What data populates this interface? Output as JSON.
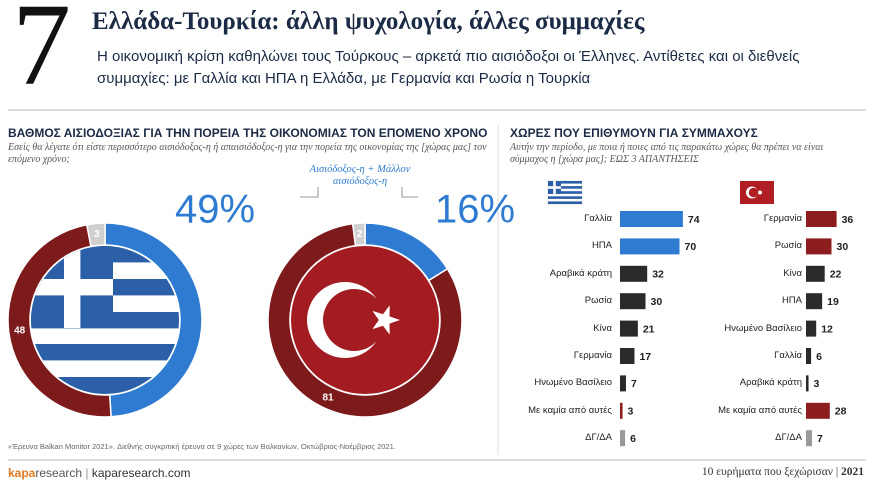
{
  "header": {
    "number": "7",
    "title": "Ελλάδα-Τουρκία: άλλη ψυχολογία, άλλες συμμαχίες",
    "subtitle": "Η οικονομική κρίση καθηλώνει τους Τούρκους – αρκετά πιο αισιόδοξοι οι Έλληνες. Αντίθετες και οι διεθνείς συμμαχίες: με Γαλλία και ΗΠΑ η Ελλάδα, με Γερμανία και Ρωσία η Τουρκία"
  },
  "sections": [
    {
      "title": "ΒΑΘΜΟΣ ΑΙΣΙΟΔΟΞΙΑΣ ΓΙΑ ΤΗΝ ΠΟΡΕΙΑ ΤΗΣ ΟΙΚΟΝΟΜΙΑΣ ΤΟΝ ΕΠΟΜΕΝΟ ΧΡΟΝΟ",
      "subtitle": "Εσείς θα λέγατε ότι είστε περισσότερο αισιόδοξος-η ή απαισιόδοξος-η για την πορεία της οικονομίας της [χώρας μας] τον επόμενο χρόνο;",
      "annotation": "Αισιόδοξος-η + Μάλλον αισιόδοξος-η"
    },
    {
      "title": "ΧΩΡΕΣ ΠΟΥ ΕΠΙΘΥΜΟΥΝ ΓΙΑ ΣΥΜΜΑΧΟΥΣ",
      "subtitle": "Αυτήν την περίοδο, με ποια ή ποιες από τις παρακάτω χώρες θα πρέπει να είναι σύμμαχος η [χώρα μας]; ΕΩΣ 3 ΑΠΑΝΤΗΣΕΙΣ"
    }
  ],
  "chart_data": [
    {
      "type": "donut",
      "values": [
        49,
        48,
        3
      ],
      "value_labels": [
        "49%",
        "48",
        "3"
      ],
      "colors": [
        "#2e7bd1",
        "#7d1a1c",
        "#d0d0d0"
      ]
    },
    {
      "type": "donut",
      "values": [
        16,
        81,
        2
      ],
      "value_labels": [
        "16%",
        "81",
        "2"
      ],
      "colors": [
        "#2e7bd1",
        "#7d1a1c",
        "#d0d0d0"
      ]
    },
    {
      "type": "hbar",
      "categories": [
        "Γαλλία",
        "ΗΠΑ",
        "Αραβικά κράτη",
        "Ρωσία",
        "Κίνα",
        "Γερμανία",
        "Ηνωμένο Βασίλειο",
        "Με καμία από αυτές",
        "ΔΓ/ΔΑ"
      ],
      "values": [
        74,
        70,
        32,
        30,
        21,
        17,
        7,
        3,
        6
      ],
      "colors": [
        "#2e7bd1",
        "#2e7bd1",
        "#2a2a2a",
        "#2a2a2a",
        "#2a2a2a",
        "#2a2a2a",
        "#2a2a2a",
        "#8c1c1e",
        "#9a9a9a"
      ]
    },
    {
      "type": "hbar",
      "categories": [
        "Γερμανία",
        "Ρωσία",
        "Κίνα",
        "ΗΠΑ",
        "Ηνωμένο Βασίλειο",
        "Γαλλία",
        "Αραβικά κράτη",
        "Με καμία από αυτές",
        "ΔΓ/ΔΑ"
      ],
      "values": [
        36,
        30,
        22,
        19,
        12,
        6,
        3,
        28,
        7
      ],
      "colors": [
        "#8c1c1e",
        "#8c1c1e",
        "#2a2a2a",
        "#2a2a2a",
        "#2a2a2a",
        "#2a2a2a",
        "#2a2a2a",
        "#8c1c1e",
        "#9a9a9a"
      ]
    }
  ],
  "footer": {
    "source": "«Έρευνα Balkan Monitor 2021». Διεθνής συγκριτική έρευνα σε 9 χώρες των Βαλκανίων, Οκτώβριος-Νοέμβριος 2021.",
    "brand": "kapa",
    "brand_rest": "research",
    "site": "kaparesearch.com",
    "series_title": "10 ευρήματα που ξεχώρισαν",
    "year": "2021"
  }
}
